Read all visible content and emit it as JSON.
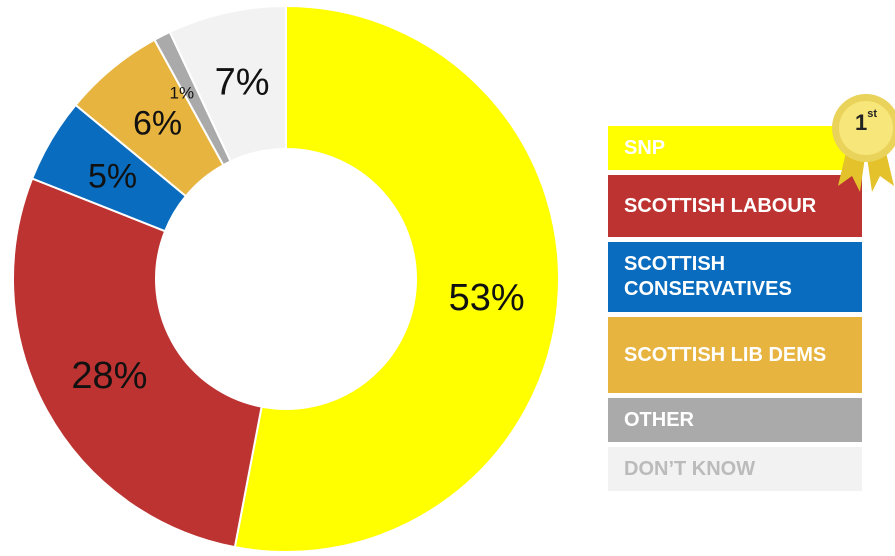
{
  "chart_data": {
    "type": "pie",
    "style": "donut",
    "title": "",
    "slices": [
      {
        "label": "SNP",
        "value": 53,
        "display": "53%",
        "color": "#ffff00",
        "text_color": "#ffffff"
      },
      {
        "label": "SCOTTISH LABOUR",
        "value": 28,
        "display": "28%",
        "color": "#bc3331",
        "text_color": "#ffffff"
      },
      {
        "label": "SCOTTISH CONSERVATIVES",
        "value": 5,
        "display": "5%",
        "color": "#0a6cbf",
        "text_color": "#ffffff"
      },
      {
        "label": "SCOTTISH LIB DEMS",
        "value": 6,
        "display": "6%",
        "color": "#e8b440",
        "text_color": "#ffffff"
      },
      {
        "label": "OTHER",
        "value": 1,
        "display": "1%",
        "color": "#aaaaaa",
        "text_color": "#ffffff"
      },
      {
        "label": "DON’T KNOW",
        "value": 7,
        "display": "7%",
        "color": "#f2f2f2",
        "text_color": "#bbbbbb"
      }
    ],
    "legend_placement": "right"
  },
  "badge": {
    "rank": "1",
    "suffix": "st",
    "color": "#f2d43a",
    "icon": "award-rosette-icon"
  }
}
